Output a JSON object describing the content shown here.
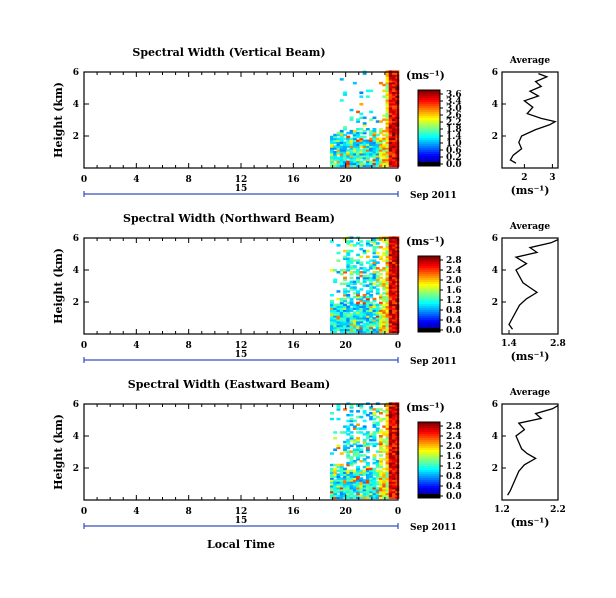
{
  "figure": {
    "xlabel": "Local Time",
    "date_label": "Sep 2011",
    "hour_ticks": [
      "0",
      "4",
      "8",
      "12",
      "16",
      "20",
      "0"
    ],
    "day_label": "15",
    "colorbar_unit": "(ms⁻¹)",
    "avg_title": "Average",
    "avg_unit": "(ms⁻¹)",
    "ylabel": "Height (km)",
    "height_ticks": [
      "2",
      "4",
      "6"
    ]
  },
  "chart_data": [
    {
      "type": "heatmap",
      "title": "Spectral Width (Vertical Beam)",
      "x_unit": "local time (h)",
      "xlim": [
        0,
        24
      ],
      "ylim": [
        0,
        6
      ],
      "colorbar": {
        "min": 0.0,
        "max": 3.8,
        "ticks": [
          "3.6",
          "3.4",
          "3.0",
          "2.6",
          "2.2",
          "1.8",
          "1.4",
          "1.0",
          "0.6",
          "0.2",
          "0.0"
        ],
        "label": "(ms⁻¹)"
      },
      "coverage": "data only after ~19 h; strongest values near 23–24 h at all heights",
      "average_profile": {
        "xlim": [
          1.2,
          3.2
        ],
        "x_ticks": [
          "2",
          "3"
        ],
        "height_km": [
          0.3,
          0.5,
          0.8,
          1.2,
          1.6,
          2.0,
          2.4,
          2.7,
          2.9,
          3.1,
          3.4,
          3.8,
          4.2,
          4.5,
          4.8,
          5.1,
          5.4,
          5.7,
          5.9
        ],
        "value": [
          1.7,
          1.5,
          1.6,
          1.9,
          1.8,
          1.9,
          2.4,
          2.9,
          3.1,
          2.6,
          2.1,
          2.3,
          2.0,
          2.5,
          2.2,
          2.6,
          2.4,
          2.8,
          2.5
        ]
      }
    },
    {
      "type": "heatmap",
      "title": "Spectral Width (Northward Beam)",
      "x_unit": "local time (h)",
      "xlim": [
        0,
        24
      ],
      "ylim": [
        0,
        6
      ],
      "colorbar": {
        "min": 0.0,
        "max": 3.0,
        "ticks": [
          "2.8",
          "2.4",
          "2.0",
          "1.6",
          "1.2",
          "0.8",
          "0.4",
          "0.0"
        ],
        "label": "(ms⁻¹)"
      },
      "coverage": "data only after ~19 h; strongest values near 23–24 h",
      "average_profile": {
        "xlim": [
          1.2,
          2.8
        ],
        "x_ticks": [
          "1.4",
          "2.8"
        ],
        "height_km": [
          0.3,
          0.6,
          1.0,
          1.4,
          1.8,
          2.2,
          2.6,
          2.9,
          3.2,
          3.6,
          4.0,
          4.4,
          4.8,
          5.1,
          5.4,
          5.7,
          5.9
        ],
        "value": [
          1.5,
          1.4,
          1.5,
          1.6,
          1.7,
          1.9,
          2.2,
          2.0,
          1.8,
          1.7,
          1.6,
          1.9,
          1.6,
          2.2,
          2.0,
          2.6,
          2.8
        ]
      }
    },
    {
      "type": "heatmap",
      "title": "Spectral Width (Eastward Beam)",
      "x_unit": "local time (h)",
      "xlim": [
        0,
        24
      ],
      "ylim": [
        0,
        6
      ],
      "colorbar": {
        "min": 0.0,
        "max": 3.0,
        "ticks": [
          "2.8",
          "2.4",
          "2.0",
          "1.6",
          "1.2",
          "0.8",
          "0.4",
          "0.0"
        ],
        "label": "(ms⁻¹)"
      },
      "coverage": "data only after ~19 h; strongest values near 23–24 h",
      "average_profile": {
        "xlim": [
          1.2,
          2.2
        ],
        "x_ticks": [
          "1.2",
          "2.2"
        ],
        "height_km": [
          0.3,
          0.6,
          1.0,
          1.4,
          1.8,
          2.2,
          2.6,
          2.9,
          3.2,
          3.6,
          4.0,
          4.4,
          4.8,
          5.1,
          5.4,
          5.7,
          5.9
        ],
        "value": [
          1.3,
          1.35,
          1.4,
          1.45,
          1.5,
          1.6,
          1.8,
          1.65,
          1.55,
          1.5,
          1.45,
          1.6,
          1.5,
          1.9,
          1.8,
          2.1,
          2.2
        ]
      }
    }
  ]
}
